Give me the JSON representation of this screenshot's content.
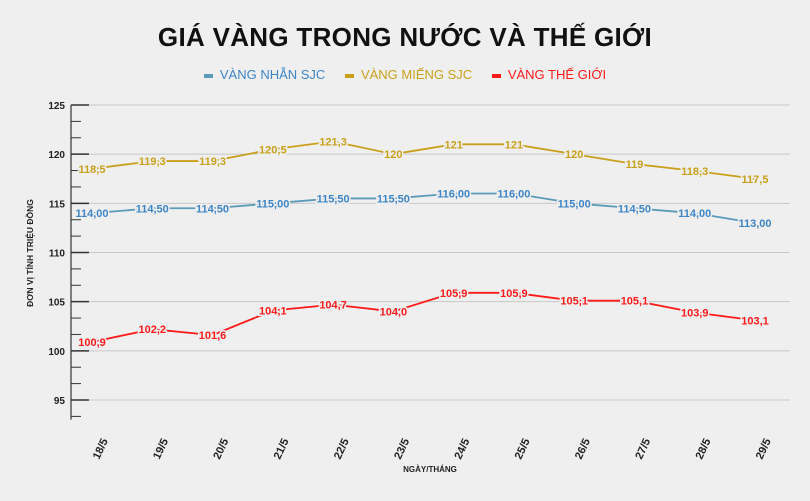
{
  "chart_data": {
    "type": "line",
    "title": "GIÁ VÀNG TRONG NƯỚC VÀ THẾ GIỚI",
    "xlabel": "NGÀY/THÁNG",
    "ylabel": "ĐƠN VỊ TÍNH TRIỆU ĐỒNG",
    "ylim": [
      93,
      125
    ],
    "yticks": [
      95,
      100,
      105,
      110,
      115,
      120,
      125
    ],
    "grid": true,
    "legend": "top",
    "categories": [
      "18/5",
      "19/5",
      "20/5",
      "21/5",
      "22/5",
      "23/5",
      "24/5",
      "25/5",
      "26/5",
      "27/5",
      "28/5",
      "29/5"
    ],
    "series": [
      {
        "name": "VÀNG NHẪN SJC",
        "color": "#5b9ab8",
        "text_color": "#3d85c6",
        "values": [
          114,
          114.5,
          114.5,
          115,
          115.5,
          115.5,
          116,
          116,
          115,
          114.5,
          114,
          113
        ],
        "labels": [
          "114,00",
          "114,50",
          "114,50",
          "115,00",
          "115,50",
          "115,50",
          "116,00",
          "116,00",
          "115,00",
          "114,50",
          "114,00",
          "113,00"
        ]
      },
      {
        "name": "VÀNG MIẾNG SJC",
        "color": "#c9a01c",
        "text_color": "#c9a01c",
        "values": [
          118.5,
          119.3,
          119.3,
          120.5,
          121.3,
          120,
          121,
          121,
          120,
          119,
          118.3,
          117.5
        ],
        "labels": [
          "118,5",
          "119,3",
          "119,3",
          "120,5",
          "121,3",
          "120",
          "121",
          "121",
          "120",
          "119",
          "118,3",
          "117,5"
        ]
      },
      {
        "name": "VÀNG THẾ GIỚI",
        "color": "#ff1a1a",
        "text_color": "#ff1a1a",
        "values": [
          100.9,
          102.2,
          101.6,
          104.1,
          104.7,
          104.0,
          105.9,
          105.9,
          105.1,
          105.1,
          103.9,
          103.1
        ],
        "labels": [
          "100,9",
          "102,2",
          "101,6",
          "104,1",
          "104,7",
          "104,0",
          "105,9",
          "105,9",
          "105,1",
          "105,1",
          "103,9",
          "103,1"
        ]
      }
    ]
  }
}
